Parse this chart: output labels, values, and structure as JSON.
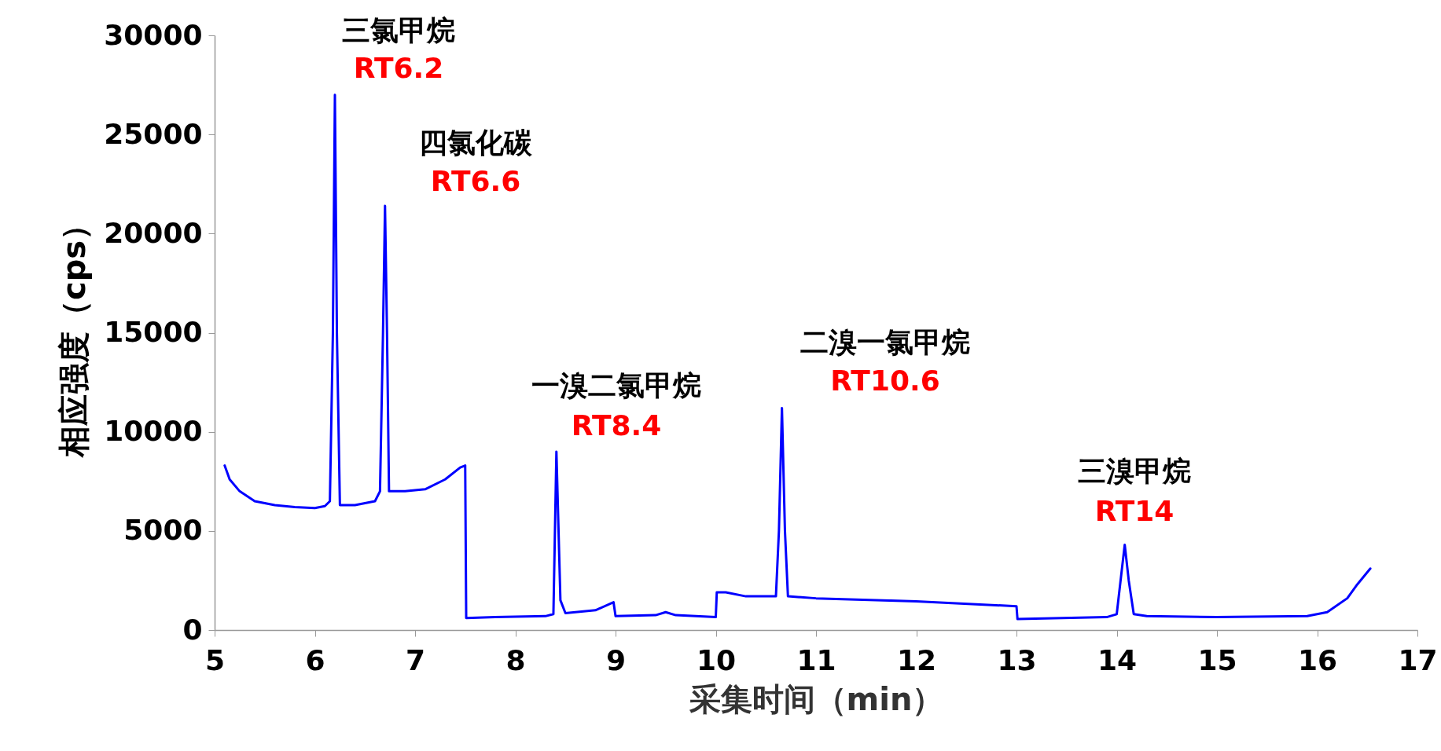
{
  "chart_data": {
    "type": "line",
    "xlabel": "采集时间（min）",
    "ylabel": "相应强度（cps）",
    "xlim": [
      5,
      17
    ],
    "xticks": [
      5,
      6,
      7,
      8,
      9,
      10,
      11,
      12,
      13,
      14,
      15,
      16,
      17
    ],
    "ylim": [
      0,
      30000
    ],
    "yticks": [
      0,
      5000,
      10000,
      15000,
      20000,
      25000,
      30000
    ],
    "grid": false,
    "marker": "none",
    "line_style": "solid",
    "series": [
      {
        "color": "#0000ff",
        "x": [
          5.1,
          5.15,
          5.25,
          5.4,
          5.6,
          5.8,
          6.0,
          6.1,
          6.15,
          6.18,
          6.2,
          6.22,
          6.25,
          6.4,
          6.6,
          6.65,
          6.68,
          6.7,
          6.72,
          6.74,
          6.9,
          7.1,
          7.3,
          7.45,
          7.5,
          7.51,
          7.8,
          8.3,
          8.38,
          8.41,
          8.45,
          8.5,
          8.8,
          8.98,
          9.0,
          9.4,
          9.5,
          9.6,
          10.0,
          10.01,
          10.1,
          10.3,
          10.6,
          10.63,
          10.66,
          10.69,
          10.72,
          11.0,
          12.0,
          13.0,
          13.01,
          13.9,
          14.0,
          14.05,
          14.08,
          14.12,
          14.17,
          14.3,
          15.0,
          15.9,
          16.1,
          16.3,
          16.4,
          16.53
        ],
        "values": [
          8300,
          7600,
          7000,
          6500,
          6300,
          6200,
          6150,
          6250,
          6500,
          15000,
          27000,
          15000,
          6300,
          6300,
          6500,
          7000,
          15000,
          21400,
          15000,
          7000,
          7000,
          7100,
          7600,
          8200,
          8300,
          600,
          650,
          700,
          800,
          9000,
          1500,
          850,
          1000,
          1400,
          700,
          750,
          900,
          750,
          650,
          1900,
          1900,
          1700,
          1700,
          5000,
          11200,
          5000,
          1700,
          1600,
          1450,
          1200,
          550,
          650,
          800,
          3000,
          4300,
          2500,
          800,
          700,
          650,
          700,
          900,
          1600,
          2300,
          3100
        ]
      }
    ],
    "annotations": [
      "三氯甲烷",
      "RT6.2",
      "四氯化碳",
      "RT6.6",
      "一溴二氯甲烷",
      "RT8.4",
      "二溴一氯甲烷",
      "RT10.6",
      "三溴甲烷",
      "RT14"
    ]
  }
}
